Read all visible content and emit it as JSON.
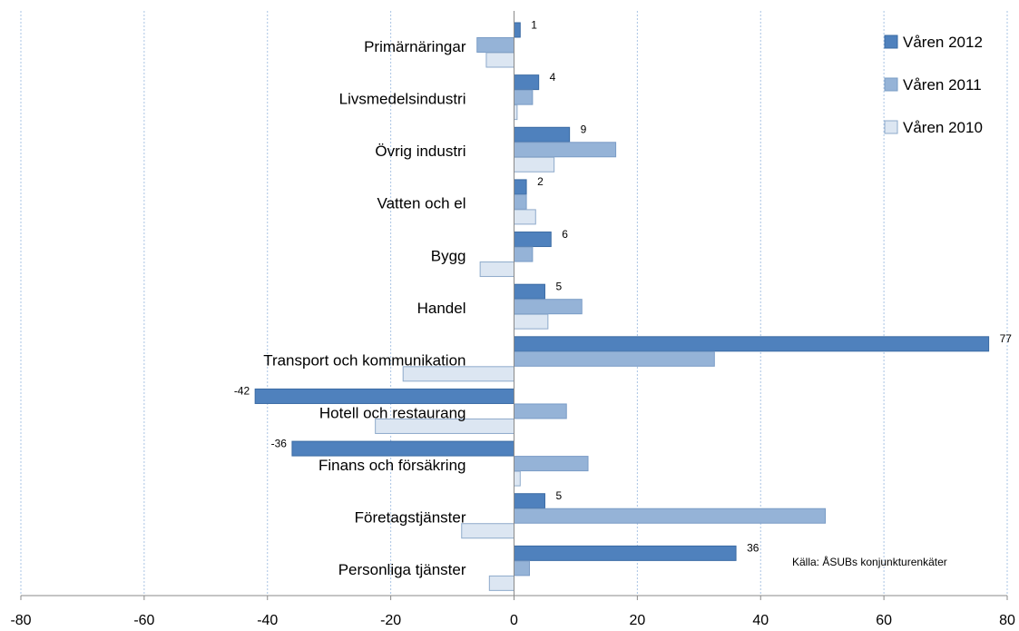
{
  "chart_data": {
    "type": "bar",
    "orientation": "horizontal",
    "categories": [
      "Primärnäringar",
      "Livsmedelsindustri",
      "Övrig industri",
      "Vatten och el",
      "Bygg",
      "Handel",
      "Transport och kommunikation",
      "Hotell och restaurang",
      "Finans och försäkring",
      "Företagstjänster",
      "Personliga tjänster"
    ],
    "series": [
      {
        "name": "Våren 2012",
        "color": "#4f81bd",
        "stroke": "#3a6aa3",
        "values": [
          1,
          4,
          9,
          2,
          6,
          5,
          77,
          -42,
          -36,
          5,
          36
        ]
      },
      {
        "name": "Våren 2011",
        "color": "#95b3d7",
        "stroke": "#7a9cc6",
        "values": [
          -6,
          3,
          16.5,
          2,
          3,
          11,
          32.5,
          8.5,
          12,
          50.5,
          2.5
        ]
      },
      {
        "name": "Våren 2010",
        "color": "#dce6f2",
        "stroke": "#8eaacb",
        "values": [
          -4.5,
          0.5,
          6.5,
          3.5,
          -5.5,
          5.5,
          -18,
          -22.5,
          1,
          -8.5,
          -4
        ]
      }
    ],
    "data_labels": [
      "1",
      "4",
      "9",
      "2",
      "6",
      "5",
      "77",
      "-42",
      "-36",
      "5",
      "36"
    ],
    "xlim": [
      -80,
      80
    ],
    "x_ticks": [
      "-80",
      "-60",
      "-40",
      "-20",
      "0",
      "20",
      "40",
      "60",
      "80"
    ],
    "x_tick_values": [
      -80,
      -60,
      -40,
      -20,
      0,
      20,
      40,
      60,
      80
    ],
    "grid": "vertical dotted",
    "legend_position": "top-right",
    "source_note": "Källa: ÅSUBs konjunkturenkäter"
  }
}
